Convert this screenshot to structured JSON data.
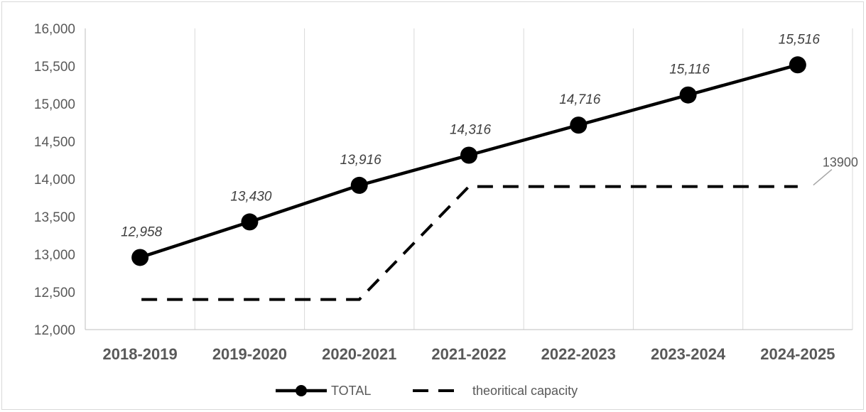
{
  "chart_data": {
    "type": "line",
    "categories": [
      "2018-2019",
      "2019-2020",
      "2020-2021",
      "2021-2022",
      "2022-2023",
      "2023-2024",
      "2024-2025"
    ],
    "series": [
      {
        "name": "TOTAL",
        "values": [
          12958,
          13430,
          13916,
          14316,
          14716,
          15116,
          15516
        ],
        "data_labels": [
          "12,958",
          "13,430",
          "13,916",
          "14,316",
          "14,716",
          "15,116",
          "15,516"
        ],
        "style": "solid-with-markers",
        "color": "#000000"
      },
      {
        "name": "theoritical capacity",
        "values": [
          12400,
          12400,
          12400,
          13900,
          13900,
          13900,
          13900
        ],
        "end_label": "13900",
        "style": "dashed",
        "color": "#000000"
      }
    ],
    "ylim": [
      12000,
      16000
    ],
    "yticks": [
      "12,000",
      "12,500",
      "13,000",
      "13,500",
      "14,000",
      "14,500",
      "15,000",
      "15,500",
      "16,000"
    ],
    "ytick_values": [
      12000,
      12500,
      13000,
      13500,
      14000,
      14500,
      15000,
      15500,
      16000
    ],
    "grid": "vertical",
    "gridline_color": "#d9d9d9",
    "axis_color": "#bfbfbf",
    "legend_position": "bottom",
    "title": "",
    "xlabel": "",
    "ylabel": ""
  }
}
